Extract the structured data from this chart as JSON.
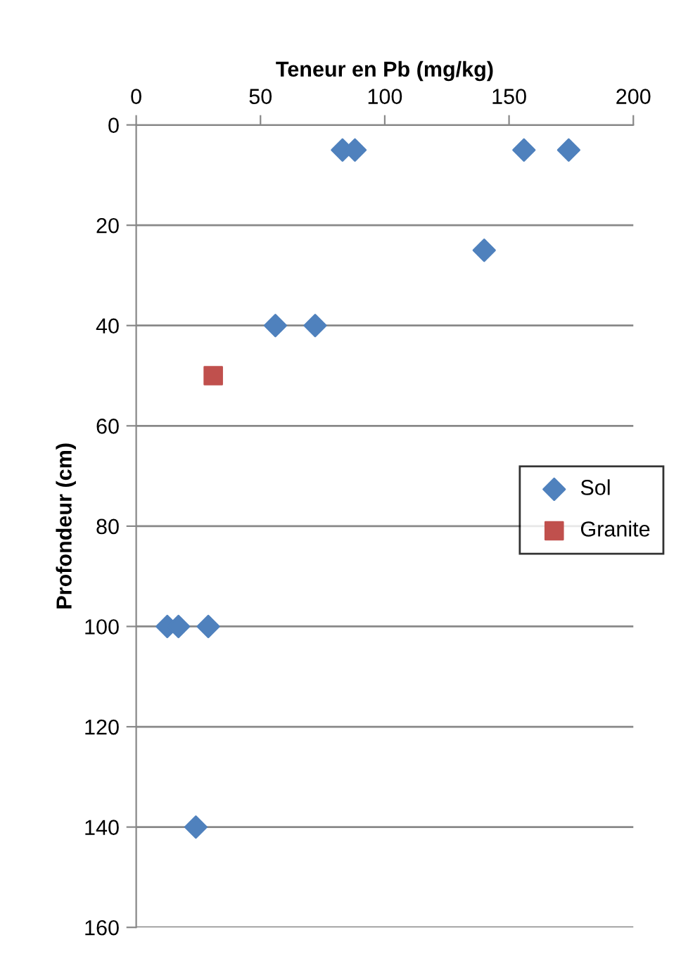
{
  "chart_data": {
    "type": "scatter",
    "xlabel": "Teneur en Pb (mg/kg)",
    "ylabel": "Profondeur (cm)",
    "xlim": [
      0,
      200
    ],
    "xticks": [
      0,
      50,
      100,
      150,
      200
    ],
    "ylim": [
      160,
      0
    ],
    "yticks": [
      0,
      20,
      40,
      60,
      80,
      100,
      120,
      140,
      160
    ],
    "grid": "y",
    "legend": "right",
    "series": [
      {
        "name": "Sol",
        "color": "#4f81bd",
        "marker": "diamond",
        "x": [
          83,
          88,
          156,
          174,
          140,
          56,
          72,
          12.5,
          17,
          29,
          24
        ],
        "values": [
          5,
          5,
          5,
          5,
          25,
          40,
          40,
          100,
          100,
          100,
          140
        ]
      },
      {
        "name": "Granite",
        "color": "#c0504d",
        "marker": "square",
        "x": [
          31
        ],
        "values": [
          50
        ]
      }
    ]
  }
}
